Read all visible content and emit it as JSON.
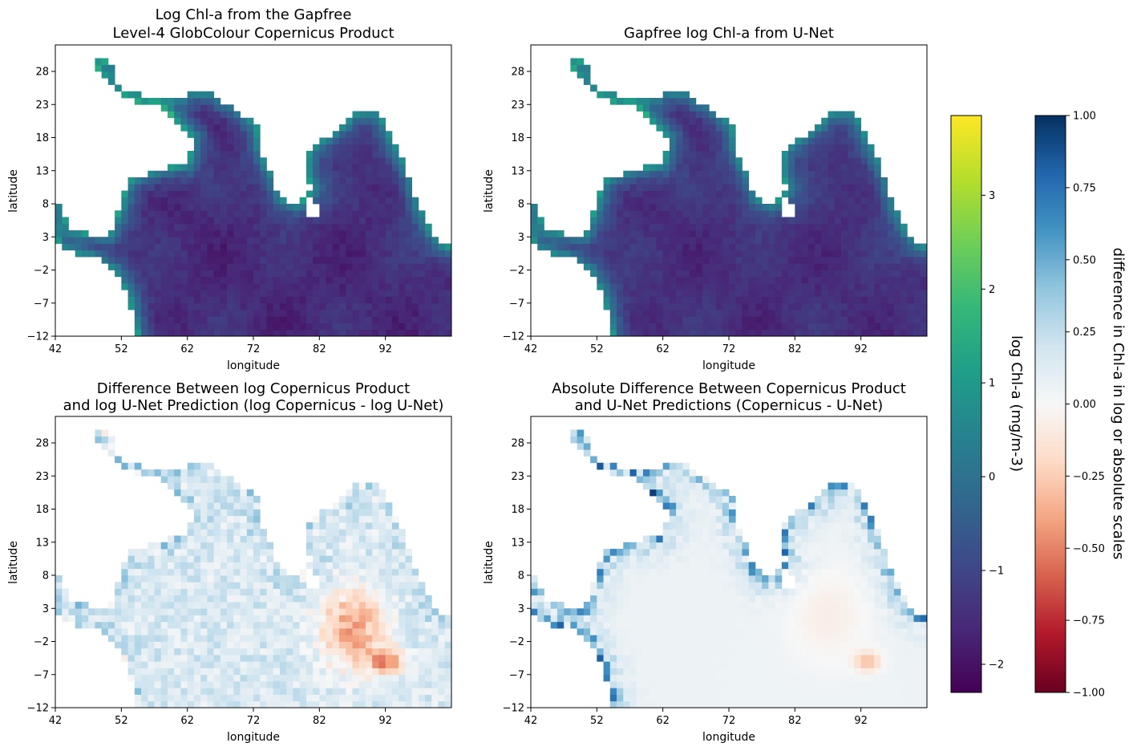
{
  "chart_data": [
    {
      "type": "heatmap",
      "title_lines": [
        "Log Chl-a from the Gapfree",
        "Level-4 GlobColour Copernicus Product"
      ],
      "xlabel": "longitude",
      "ylabel": "latitude",
      "xticks": [
        42,
        52,
        62,
        72,
        82,
        92
      ],
      "yticks": [
        -12,
        -7,
        -2,
        3,
        8,
        13,
        18,
        23,
        28
      ],
      "xlim": [
        42,
        102
      ],
      "ylim": [
        -12,
        32
      ],
      "colormap": "viridis",
      "colorbar": 0
    },
    {
      "type": "heatmap",
      "title_lines": [
        "Gapfree log Chl-a from U-Net"
      ],
      "xlabel": "longitude",
      "ylabel": "latitude",
      "xticks": [
        42,
        52,
        62,
        72,
        82,
        92
      ],
      "yticks": [
        -12,
        -7,
        -2,
        3,
        8,
        13,
        18,
        23,
        28
      ],
      "xlim": [
        42,
        102
      ],
      "ylim": [
        -12,
        32
      ],
      "colormap": "viridis",
      "colorbar": 0
    },
    {
      "type": "heatmap",
      "title_lines": [
        "Difference Between log Copernicus Product",
        "and log U-Net Prediction (log Copernicus - log U-Net)"
      ],
      "xlabel": "longitude",
      "ylabel": "latitude",
      "xticks": [
        42,
        52,
        62,
        72,
        82,
        92
      ],
      "yticks": [
        -12,
        -7,
        -2,
        3,
        8,
        13,
        18,
        23,
        28
      ],
      "xlim": [
        42,
        102
      ],
      "ylim": [
        -12,
        32
      ],
      "colormap": "RdBu",
      "colorbar": 1
    },
    {
      "type": "heatmap",
      "title_lines": [
        "Absolute Difference Between Copernicus Product",
        "and U-Net Predictions (Copernicus - U-Net)"
      ],
      "xlabel": "longitude",
      "ylabel": "latitude",
      "xticks": [
        42,
        52,
        62,
        72,
        82,
        92
      ],
      "yticks": [
        -12,
        -7,
        -2,
        3,
        8,
        13,
        18,
        23,
        28
      ],
      "xlim": [
        42,
        102
      ],
      "ylim": [
        -12,
        32
      ],
      "colormap": "RdBu",
      "colorbar": 1
    }
  ],
  "colorbars": [
    {
      "label": "log Chl-a (mg/m-3)",
      "colormap": "viridis",
      "range": [
        -2.3,
        3.85
      ],
      "ticks": [
        -2,
        -1,
        0,
        1,
        2,
        3
      ],
      "tick_labels": [
        "−2",
        "−1",
        "0",
        "1",
        "2",
        "3"
      ],
      "colors": [
        "#440154",
        "#482878",
        "#3e4989",
        "#31688e",
        "#26828e",
        "#1f9e89",
        "#35b779",
        "#6ece58",
        "#b5de2b",
        "#fde725"
      ]
    },
    {
      "label": "difference in Chl-a in log or absolute scales",
      "colormap": "RdBu",
      "range": [
        -1.0,
        1.0
      ],
      "ticks": [
        -1.0,
        -0.75,
        -0.5,
        -0.25,
        0.0,
        0.25,
        0.5,
        0.75,
        1.0
      ],
      "tick_labels": [
        "−1.00",
        "−0.75",
        "−0.50",
        "−0.25",
        "0.00",
        "0.25",
        "0.50",
        "0.75",
        "1.00"
      ],
      "colors": [
        "#67001f",
        "#b2182b",
        "#d6604d",
        "#f4a582",
        "#fddbc7",
        "#f7f7f7",
        "#d1e5f0",
        "#92c5de",
        "#4393c3",
        "#2166ac",
        "#053061"
      ]
    }
  ]
}
